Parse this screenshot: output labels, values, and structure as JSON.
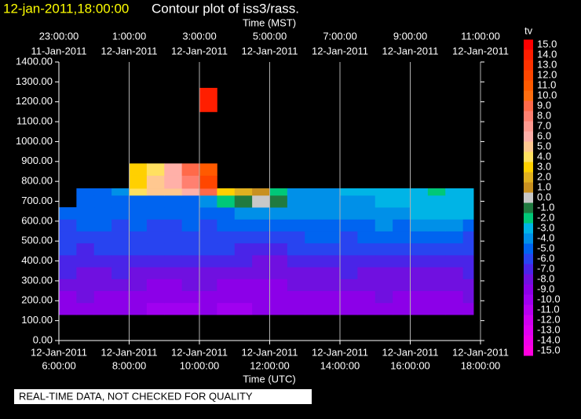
{
  "chart_data": {
    "type": "contour",
    "title_time": "12-jan-2011,18:00:00",
    "title": "Contour plot of iss3/rass.",
    "xlabel": "Time (UTC)",
    "x2label": "Time (MST)",
    "xlim": [
      6,
      18
    ],
    "ylim": [
      0,
      1400
    ],
    "xticks": [
      {
        "value": 6,
        "label": "6:00:00"
      },
      {
        "value": 8,
        "label": "8:00:00"
      },
      {
        "value": 10,
        "label": "10:00:00"
      },
      {
        "value": 12,
        "label": "12:00:00"
      },
      {
        "value": 14,
        "label": "14:00:00"
      },
      {
        "value": 16,
        "label": "16:00:00"
      },
      {
        "value": 18,
        "label": "18:00:00"
      }
    ],
    "xtick_dates": [
      "12-Jan-2011",
      "12-Jan-2011",
      "12-Jan-2011",
      "12-Jan-2011",
      "12-Jan-2011",
      "12-Jan-2011",
      "12-Jan-2011"
    ],
    "x2ticks": [
      {
        "value": 6,
        "label": "23:00:00"
      },
      {
        "value": 8,
        "label": "1:00:00"
      },
      {
        "value": 10,
        "label": "3:00:00"
      },
      {
        "value": 12,
        "label": "5:00:00"
      },
      {
        "value": 14,
        "label": "7:00:00"
      },
      {
        "value": 16,
        "label": "9:00:00"
      },
      {
        "value": 18,
        "label": "11:00:00"
      }
    ],
    "x2tick_dates": [
      "11-Jan-2011",
      "12-Jan-2011",
      "12-Jan-2011",
      "12-Jan-2011",
      "12-Jan-2011",
      "12-Jan-2011",
      "12-Jan-2011"
    ],
    "yticks": [
      {
        "value": 0,
        "label": "0.00"
      },
      {
        "value": 100,
        "label": "100.00"
      },
      {
        "value": 200,
        "label": "200.00"
      },
      {
        "value": 300,
        "label": "300.00"
      },
      {
        "value": 400,
        "label": "400.00"
      },
      {
        "value": 500,
        "label": "500.00"
      },
      {
        "value": 600,
        "label": "600.00"
      },
      {
        "value": 700,
        "label": "700.00"
      },
      {
        "value": 800,
        "label": "800.00"
      },
      {
        "value": 900,
        "label": "900.00"
      },
      {
        "value": 1000,
        "label": "1000.00"
      },
      {
        "value": 1100,
        "label": "1100.00"
      },
      {
        "value": 1200,
        "label": "1200.00"
      },
      {
        "value": 1300,
        "label": "1300.00"
      },
      {
        "value": 1400,
        "label": "1400.00"
      }
    ],
    "grid": true,
    "x_edges": [
      6,
      6.5,
      7,
      7.5,
      8,
      8.5,
      9,
      9.5,
      10,
      10.5,
      11,
      11.5,
      12,
      12.5,
      13,
      13.5,
      14,
      14.5,
      15,
      15.5,
      16,
      16.5,
      17,
      17.5,
      17.8
    ],
    "y_edges": [
      130,
      190,
      250,
      310,
      370,
      430,
      490,
      550,
      610,
      670,
      730,
      765,
      830,
      890,
      1150,
      1270
    ],
    "z": [
      [
        -9,
        -9,
        -9,
        -9,
        -9,
        -10,
        -10,
        -10,
        -9,
        -10,
        -10,
        -9,
        -9,
        -9,
        -9,
        -9,
        -9,
        -9,
        -9,
        -9,
        -9,
        -9,
        -9,
        -9
      ],
      [
        -9,
        -8,
        -9,
        -9,
        -9,
        -9,
        -9,
        -9,
        -9,
        -9,
        -9,
        -9,
        -9,
        -9,
        -9,
        -9,
        -9,
        -9,
        -8,
        -9,
        -9,
        -9,
        -9,
        -8
      ],
      [
        -8,
        -8,
        -8,
        -8,
        -8,
        -9,
        -9,
        -8,
        -8,
        -9,
        -9,
        -9,
        -9,
        -8,
        -8,
        -8,
        -8,
        -8,
        -8,
        -8,
        -8,
        -8,
        -8,
        -8
      ],
      [
        -7,
        -8,
        -8,
        -7,
        -8,
        -8,
        -8,
        -8,
        -8,
        -8,
        -8,
        -8,
        -8,
        -8,
        -8,
        -8,
        -7,
        -8,
        -8,
        -8,
        -8,
        -8,
        -8,
        -7
      ],
      [
        -7,
        -7,
        -7,
        -7,
        -7,
        -7,
        -7,
        -7,
        -7,
        -7,
        -7,
        -8,
        -8,
        -7,
        -7,
        -7,
        -7,
        -7,
        -7,
        -7,
        -7,
        -7,
        -7,
        -7
      ],
      [
        -6,
        -7,
        -6,
        -6,
        -6,
        -6,
        -6,
        -6,
        -6,
        -6,
        -7,
        -7,
        -7,
        -6,
        -6,
        -6,
        -6,
        -6,
        -6,
        -6,
        -6,
        -6,
        -6,
        -6
      ],
      [
        -6,
        -6,
        -6,
        -6,
        -6,
        -6,
        -6,
        -6,
        -6,
        -6,
        -6,
        -6,
        -6,
        -6,
        -5,
        -5,
        -6,
        -5,
        -5,
        -5,
        -5,
        -5,
        -5,
        -6
      ],
      [
        -6,
        -5,
        -5,
        -6,
        -5,
        -6,
        -6,
        -5,
        -6,
        -5,
        -5,
        -5,
        -5,
        -5,
        -5,
        -5,
        -5,
        -5,
        -4,
        -5,
        -4,
        -4,
        -4,
        -5
      ],
      [
        -5,
        -5,
        -5,
        -5,
        -5,
        -5,
        -5,
        -5,
        -5,
        -5,
        -4,
        -4,
        -4,
        -4,
        -4,
        -4,
        -4,
        -4,
        -4,
        -4,
        -3,
        -3,
        -3,
        -3
      ],
      [
        null,
        -5,
        -5,
        -5,
        -5,
        -5,
        -5,
        -5,
        -4,
        -2,
        -1,
        0,
        -1,
        -4,
        -4,
        -4,
        -4,
        -4,
        -3,
        -3,
        -3,
        -3,
        -3,
        -3
      ],
      [
        null,
        -5,
        -5,
        -4,
        4,
        5,
        5,
        6,
        9,
        3,
        2,
        1,
        -2,
        -4,
        -4,
        -4,
        -3,
        -3,
        -3,
        -3,
        -3,
        -2,
        -3,
        -3
      ],
      [
        null,
        null,
        null,
        null,
        3,
        5,
        6,
        8,
        12,
        null,
        null,
        null,
        null,
        null,
        null,
        null,
        null,
        null,
        null,
        null,
        null,
        null,
        null,
        null
      ],
      [
        null,
        null,
        null,
        null,
        3,
        4,
        6,
        9,
        11,
        null,
        null,
        null,
        null,
        null,
        null,
        null,
        null,
        null,
        null,
        null,
        null,
        null,
        null,
        null
      ],
      [
        null,
        null,
        null,
        null,
        null,
        null,
        null,
        null,
        null,
        null,
        null,
        null,
        null,
        null,
        null,
        null,
        null,
        null,
        null,
        null,
        null,
        null,
        null,
        null
      ],
      [
        null,
        null,
        null,
        null,
        null,
        null,
        null,
        null,
        14,
        null,
        null,
        null,
        null,
        null,
        null,
        null,
        null,
        null,
        null,
        null,
        null,
        null,
        null,
        null
      ]
    ],
    "colorbar": {
      "title": "tv",
      "levels": [
        {
          "value": 15,
          "label": "15.0",
          "color": "#ff0000"
        },
        {
          "value": 14,
          "label": "14.0",
          "color": "#ff1e00"
        },
        {
          "value": 13,
          "label": "13.0",
          "color": "#ff3200"
        },
        {
          "value": 12,
          "label": "12.0",
          "color": "#ff4600"
        },
        {
          "value": 11,
          "label": "11.0",
          "color": "#ff5a00"
        },
        {
          "value": 10,
          "label": "10.0",
          "color": "#ff6e10"
        },
        {
          "value": 9,
          "label": "9.0",
          "color": "#ff6a4a"
        },
        {
          "value": 8,
          "label": "8.0",
          "color": "#ff8070"
        },
        {
          "value": 7,
          "label": "7.0",
          "color": "#ff9a90"
        },
        {
          "value": 6,
          "label": "6.0",
          "color": "#ffb0a8"
        },
        {
          "value": 5,
          "label": "5.0",
          "color": "#ffc890"
        },
        {
          "value": 4,
          "label": "4.0",
          "color": "#ffe060"
        },
        {
          "value": 3,
          "label": "3.0",
          "color": "#ffd000"
        },
        {
          "value": 2,
          "label": "2.0",
          "color": "#e0b020"
        },
        {
          "value": 1,
          "label": "1.0",
          "color": "#c89020"
        },
        {
          "value": 0,
          "label": "0.0",
          "color": "#c8c8c8"
        },
        {
          "value": -1,
          "label": "-1.0",
          "color": "#207a40"
        },
        {
          "value": -2,
          "label": "-2.0",
          "color": "#00c878"
        },
        {
          "value": -3,
          "label": "-3.0",
          "color": "#00b4e6"
        },
        {
          "value": -4,
          "label": "-4.0",
          "color": "#0090e8"
        },
        {
          "value": -5,
          "label": "-5.0",
          "color": "#0064f0"
        },
        {
          "value": -6,
          "label": "-6.0",
          "color": "#2844f0"
        },
        {
          "value": -7,
          "label": "-7.0",
          "color": "#4a24e8"
        },
        {
          "value": -8,
          "label": "-8.0",
          "color": "#7010e0"
        },
        {
          "value": -9,
          "label": "-9.0",
          "color": "#8c00e8"
        },
        {
          "value": -10,
          "label": "-10.0",
          "color": "#a000f0"
        },
        {
          "value": -11,
          "label": "-11.0",
          "color": "#b800f0"
        },
        {
          "value": -12,
          "label": "-12.0",
          "color": "#d000f0"
        },
        {
          "value": -13,
          "label": "-13.0",
          "color": "#e000f0"
        },
        {
          "value": -14,
          "label": "-14.0",
          "color": "#f000e8"
        },
        {
          "value": -15,
          "label": "-15.0",
          "color": "#ff00e0"
        }
      ]
    }
  },
  "notice": "REAL-TIME DATA, NOT CHECKED FOR QUALITY"
}
